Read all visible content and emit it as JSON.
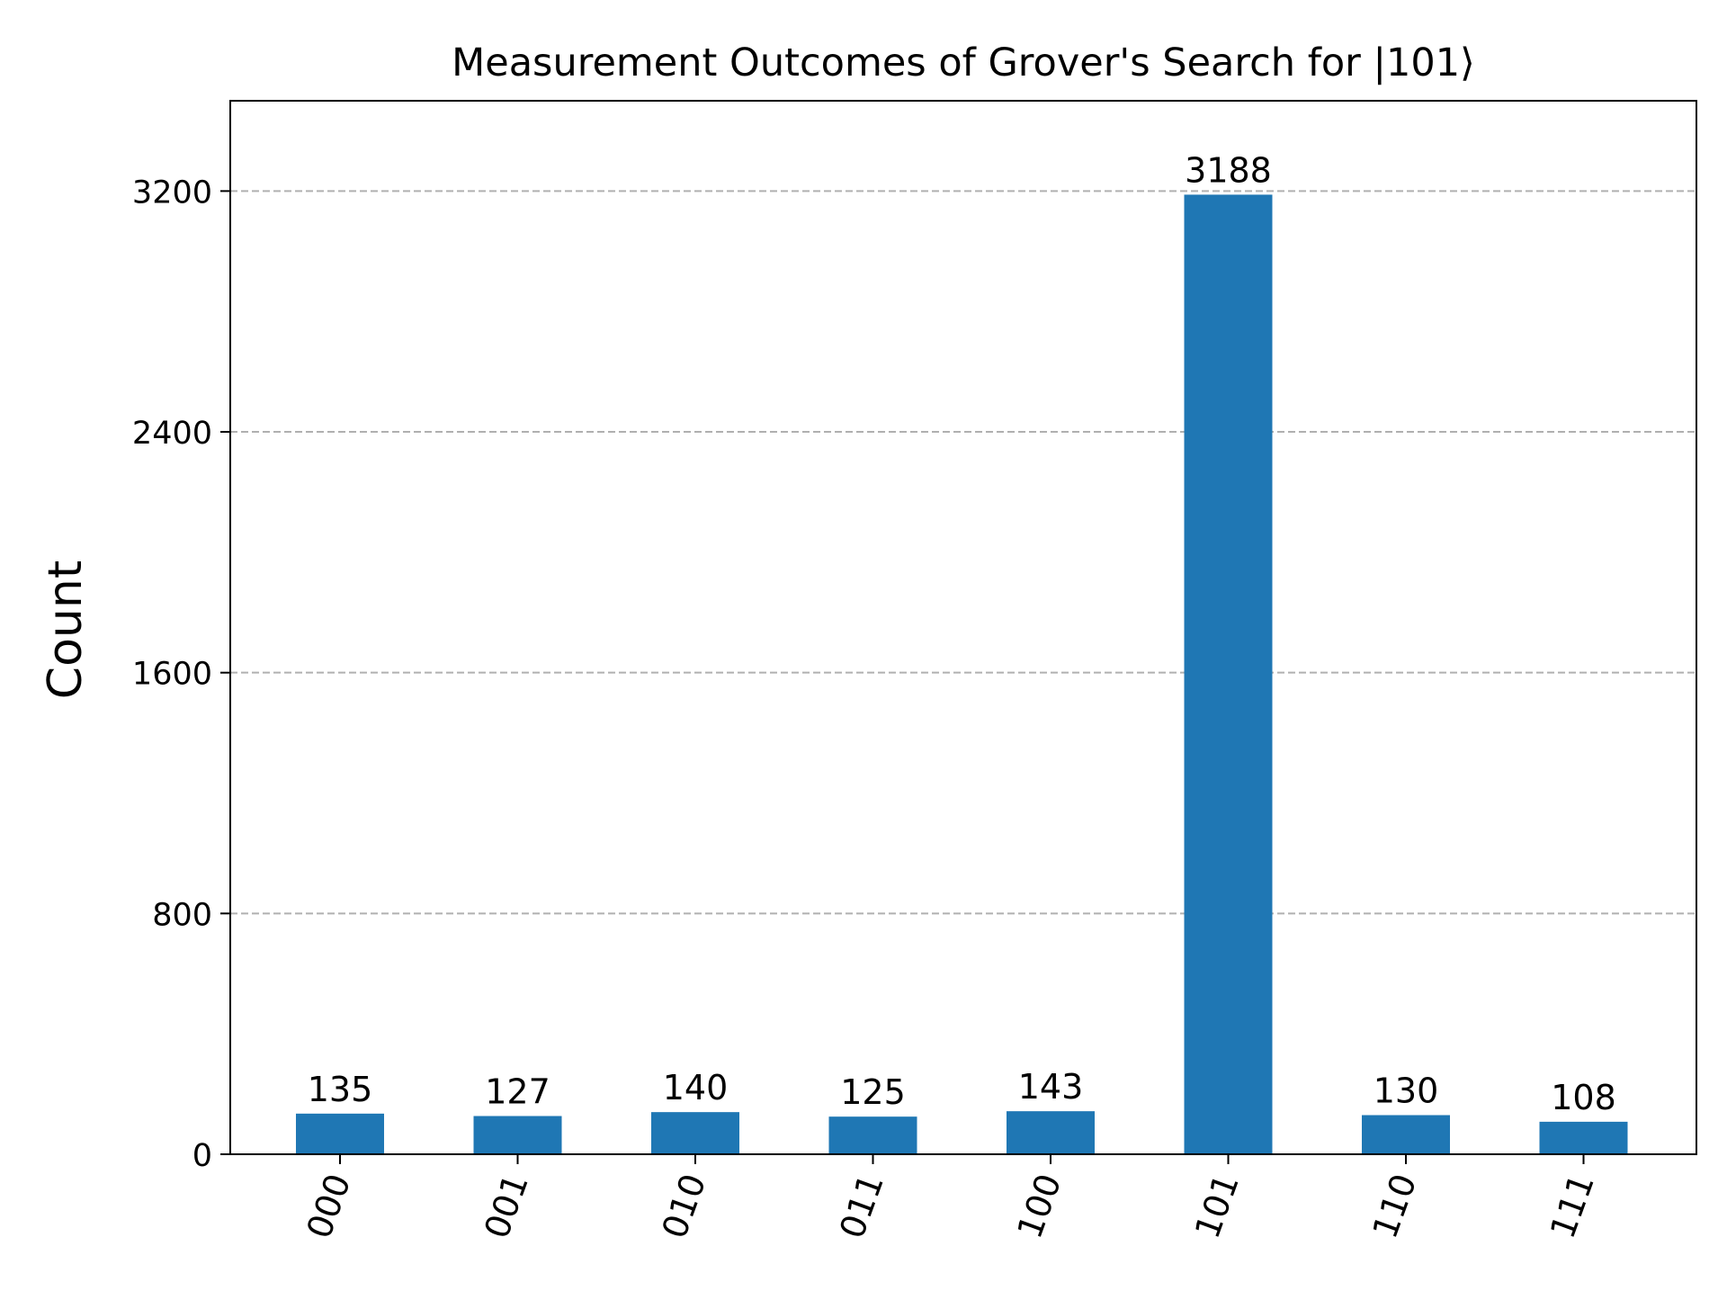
{
  "chart_data": {
    "type": "bar",
    "title": "Measurement Outcomes of Grover's Search for |101⟩",
    "xlabel": "",
    "ylabel": "Count",
    "categories": [
      "000",
      "001",
      "010",
      "011",
      "100",
      "101",
      "110",
      "111"
    ],
    "values": [
      135,
      127,
      140,
      125,
      143,
      3188,
      130,
      108
    ],
    "ylim": [
      0,
      3500
    ],
    "yticks": [
      0,
      800,
      1600,
      2400,
      3200
    ],
    "ytick_labels": [
      "0",
      "800",
      "1600",
      "2400",
      "3200"
    ],
    "grid": "y-dashed",
    "bar_color": "#1f77b4",
    "grid_color": "#b0b0b0",
    "xtick_rotation": "70°",
    "legend": "none"
  }
}
